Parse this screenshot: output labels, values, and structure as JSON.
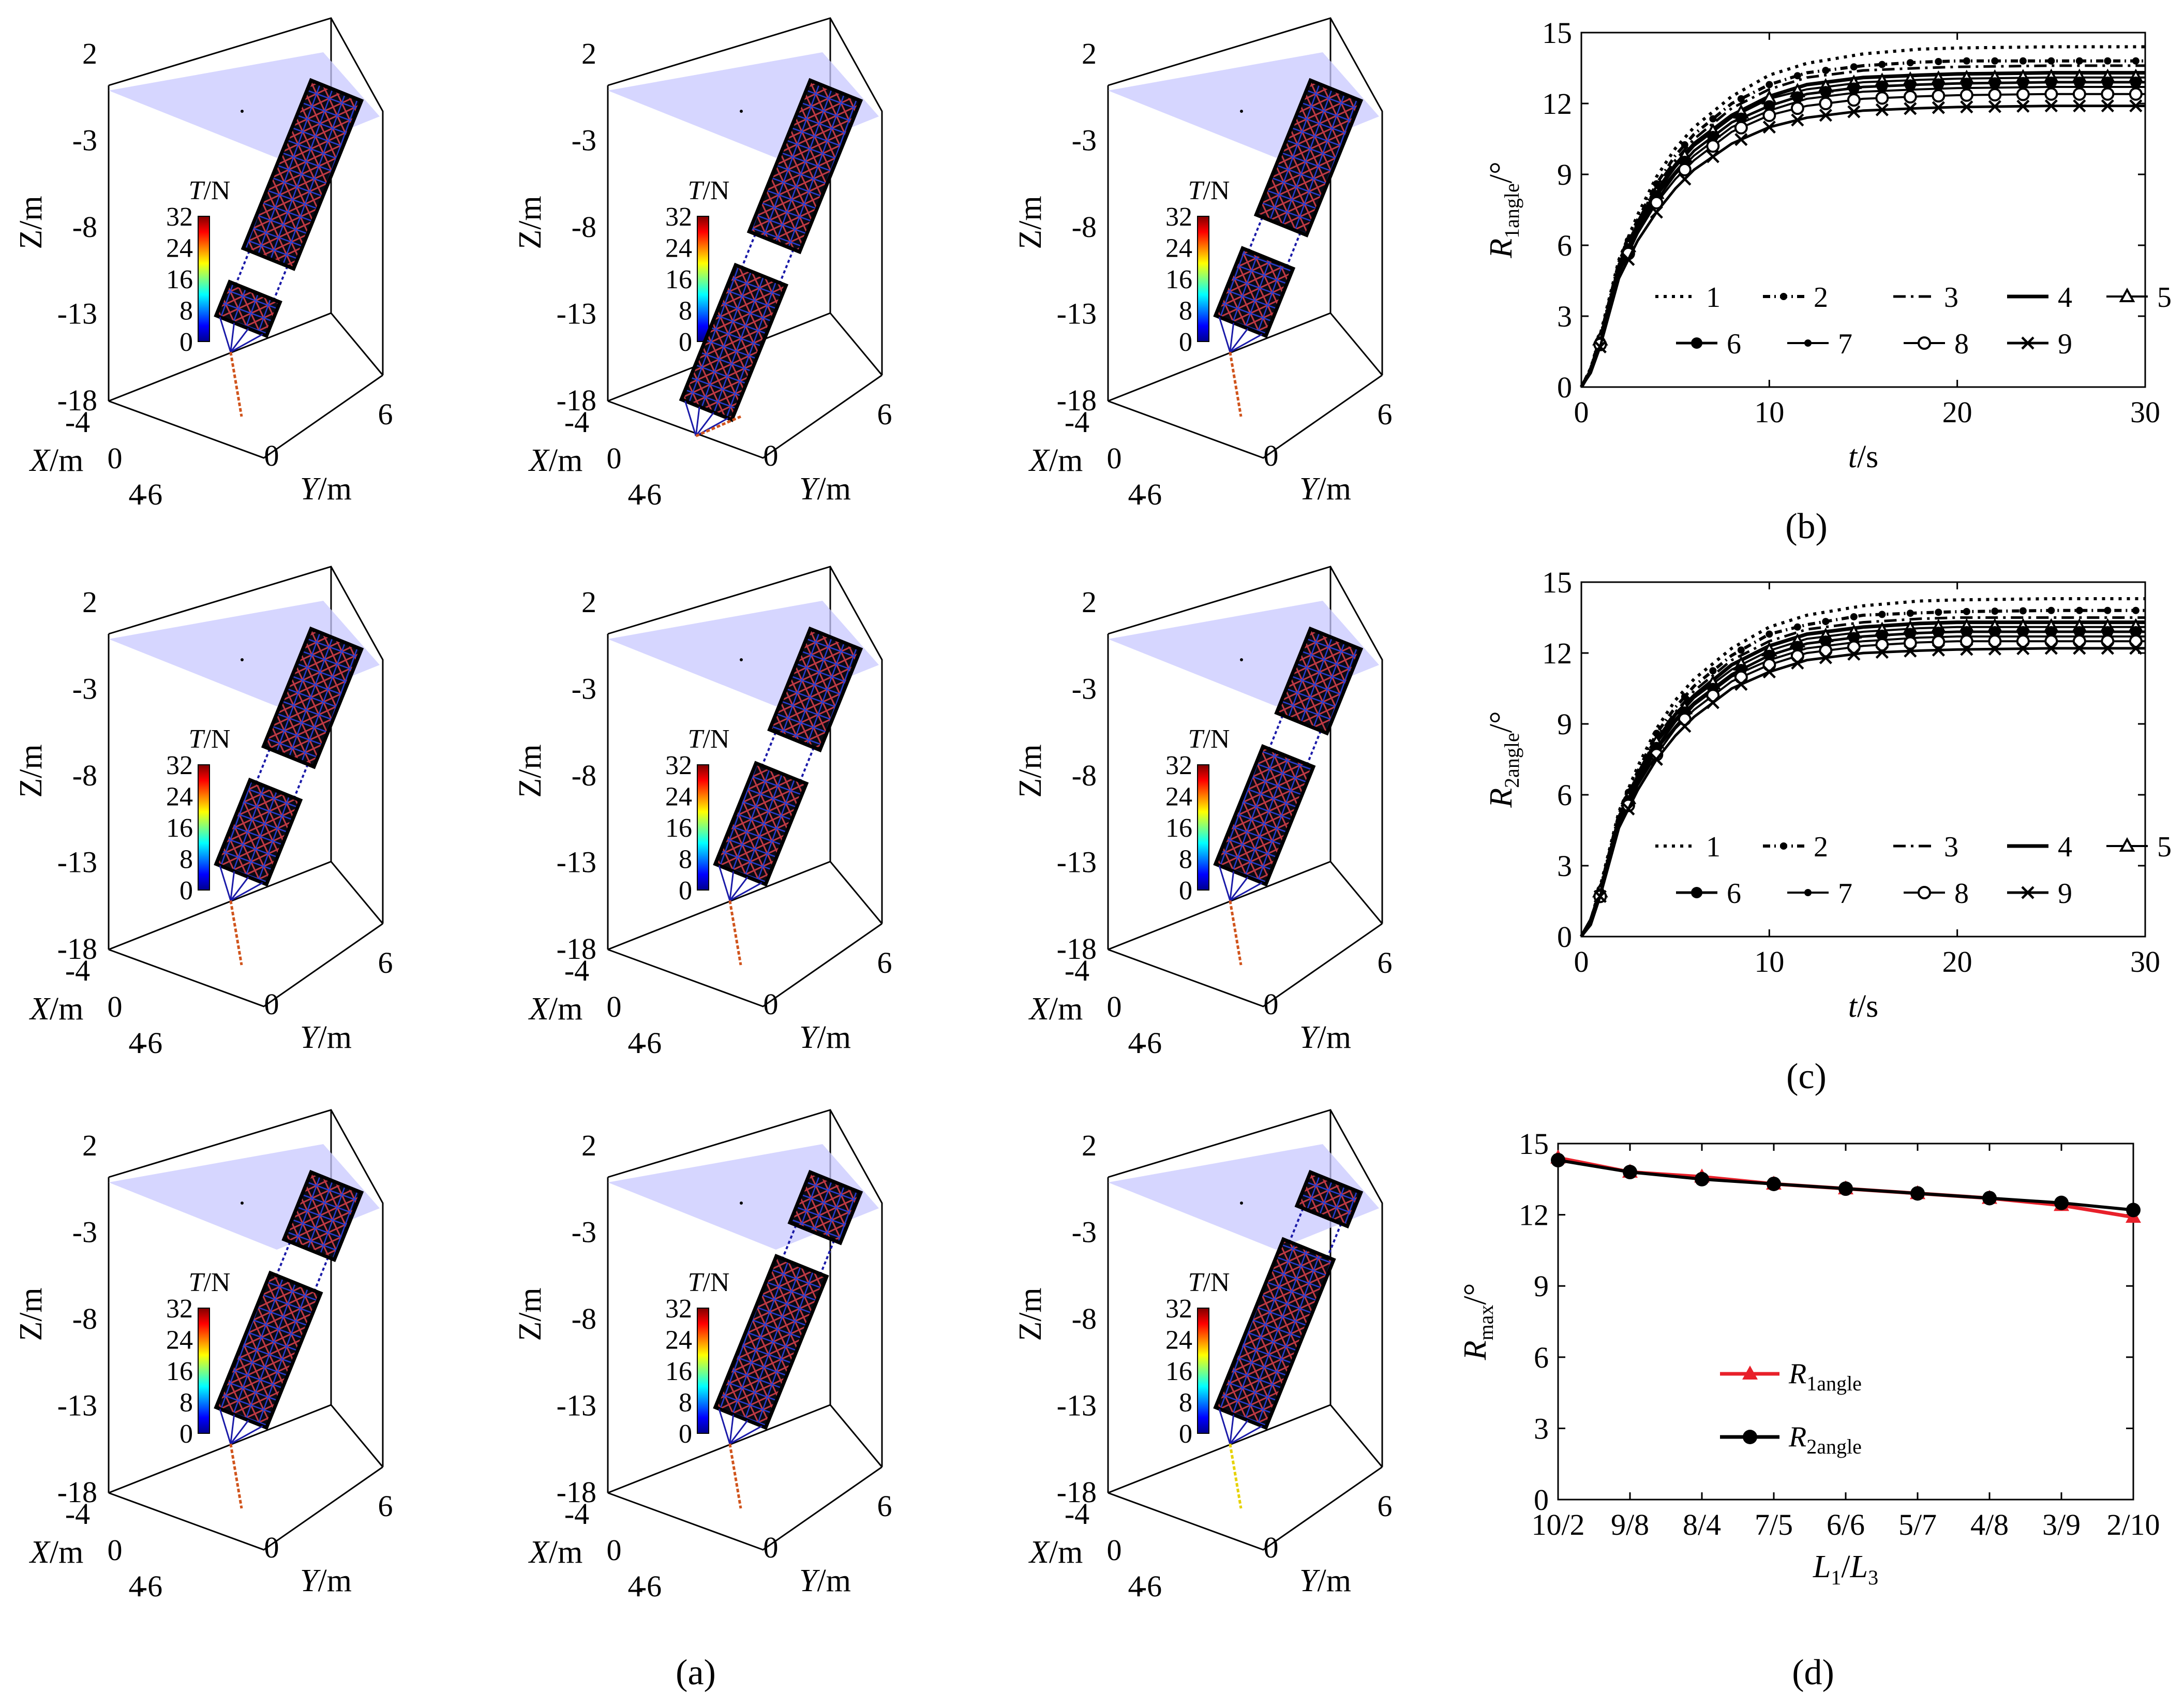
{
  "captions": {
    "a": "(a)",
    "b": "(b)",
    "c": "(c)",
    "d": "(d)"
  },
  "panel_a": {
    "z_ticks": [
      "2",
      "-3",
      "-8",
      "-13",
      "-18"
    ],
    "x_ticks": [
      "-4",
      "0",
      "4"
    ],
    "y_ticks": [
      "-6",
      "0",
      "6"
    ],
    "z_label": "Z/m",
    "x_label_italic": "X",
    "y_label_italic": "Y",
    "axis_unit": "/m",
    "colorbar_title_italic": "T",
    "colorbar_title_unit": "/N",
    "colorbar_ticks": [
      "32",
      "24",
      "16",
      "8",
      "0"
    ],
    "colorbar_range": [
      0,
      32
    ],
    "z_range": [
      -18,
      2
    ],
    "colors": {
      "water_plane": "#c8c8ff",
      "mesh_blue": "#1a1aa8",
      "mesh_red": "#c82828",
      "dark": "#000000"
    },
    "subplots": [
      {
        "id": "1",
        "L1": 10,
        "L3": 2
      },
      {
        "id": "2",
        "L1": 9,
        "L3": 8
      },
      {
        "id": "3",
        "L1": 8,
        "L3": 4
      },
      {
        "id": "4",
        "L1": 7,
        "L3": 5
      },
      {
        "id": "5",
        "L1": 6,
        "L3": 6
      },
      {
        "id": "6",
        "L1": 5,
        "L3": 7
      },
      {
        "id": "7",
        "L1": 4,
        "L3": 8
      },
      {
        "id": "8",
        "L1": 3,
        "L3": 9
      },
      {
        "id": "9",
        "L1": 2,
        "L3": 10
      }
    ]
  },
  "chart_data": [
    {
      "id": "b",
      "type": "line",
      "title": "",
      "xlabel": "t/s",
      "ylabel": "R1angle/°",
      "xlim": [
        0,
        30
      ],
      "ylim": [
        0,
        15
      ],
      "xticks": [
        0,
        10,
        20,
        30
      ],
      "yticks": [
        0,
        3,
        6,
        9,
        12,
        15
      ],
      "legend_placement": "lower-right",
      "t": [
        0,
        0.5,
        1,
        2,
        3,
        4,
        5,
        6,
        8,
        10,
        12,
        15,
        18,
        20,
        25,
        30
      ],
      "series": [
        {
          "name": "1",
          "values": [
            0,
            0.8,
            2.2,
            5.4,
            7.3,
            8.9,
            10.1,
            11.0,
            12.3,
            13.2,
            13.7,
            14.1,
            14.3,
            14.35,
            14.4,
            14.4
          ]
        },
        {
          "name": "2",
          "values": [
            0,
            0.8,
            2.1,
            5.3,
            7.1,
            8.6,
            9.8,
            10.7,
            12.0,
            12.8,
            13.3,
            13.6,
            13.75,
            13.8,
            13.8,
            13.8
          ]
        },
        {
          "name": "3",
          "values": [
            0,
            0.8,
            2.1,
            5.2,
            7.0,
            8.5,
            9.6,
            10.5,
            11.8,
            12.6,
            13.1,
            13.4,
            13.5,
            13.55,
            13.6,
            13.6
          ]
        },
        {
          "name": "4",
          "values": [
            0,
            0.7,
            2.0,
            5.1,
            6.9,
            8.3,
            9.4,
            10.3,
            11.5,
            12.3,
            12.8,
            13.1,
            13.2,
            13.25,
            13.3,
            13.3
          ]
        },
        {
          "name": "5",
          "values": [
            0,
            0.7,
            2.0,
            5.1,
            6.8,
            8.2,
            9.3,
            10.2,
            11.4,
            12.2,
            12.6,
            12.9,
            13.0,
            13.05,
            13.1,
            13.1
          ]
        },
        {
          "name": "6",
          "values": [
            0,
            0.7,
            1.9,
            5.0,
            6.7,
            8.1,
            9.1,
            10.0,
            11.2,
            11.9,
            12.4,
            12.7,
            12.8,
            12.85,
            12.9,
            12.9
          ]
        },
        {
          "name": "7",
          "values": [
            0,
            0.7,
            1.9,
            4.9,
            6.6,
            7.9,
            9.0,
            9.8,
            11.0,
            11.7,
            12.2,
            12.5,
            12.6,
            12.65,
            12.7,
            12.7
          ]
        },
        {
          "name": "8",
          "values": [
            0,
            0.6,
            1.8,
            4.8,
            6.5,
            7.8,
            8.8,
            9.6,
            10.8,
            11.5,
            11.9,
            12.2,
            12.3,
            12.35,
            12.4,
            12.4
          ]
        },
        {
          "name": "9",
          "values": [
            0,
            0.6,
            1.7,
            4.6,
            6.2,
            7.4,
            8.4,
            9.2,
            10.3,
            11.0,
            11.4,
            11.7,
            11.8,
            11.85,
            11.9,
            11.9
          ]
        }
      ]
    },
    {
      "id": "c",
      "type": "line",
      "title": "",
      "xlabel": "t/s",
      "ylabel": "R2angle/°",
      "xlim": [
        0,
        30
      ],
      "ylim": [
        0,
        15
      ],
      "xticks": [
        0,
        10,
        20,
        30
      ],
      "yticks": [
        0,
        3,
        6,
        9,
        12,
        15
      ],
      "legend_placement": "lower-right",
      "t": [
        0,
        0.5,
        1,
        2,
        3,
        4,
        5,
        6,
        8,
        10,
        12,
        15,
        18,
        20,
        25,
        30
      ],
      "series": [
        {
          "name": "1",
          "values": [
            0,
            0.7,
            2.1,
            5.3,
            7.2,
            8.8,
            10.0,
            10.9,
            12.2,
            13.1,
            13.6,
            14.0,
            14.2,
            14.25,
            14.3,
            14.3
          ]
        },
        {
          "name": "2",
          "values": [
            0,
            0.7,
            2.0,
            5.2,
            7.0,
            8.6,
            9.7,
            10.6,
            11.9,
            12.8,
            13.2,
            13.6,
            13.7,
            13.75,
            13.8,
            13.8
          ]
        },
        {
          "name": "3",
          "values": [
            0,
            0.7,
            2.0,
            5.1,
            6.9,
            8.4,
            9.5,
            10.4,
            11.7,
            12.5,
            13.0,
            13.3,
            13.45,
            13.5,
            13.5,
            13.5
          ]
        },
        {
          "name": "4",
          "values": [
            0,
            0.7,
            1.9,
            5.0,
            6.8,
            8.3,
            9.4,
            10.2,
            11.5,
            12.3,
            12.8,
            13.1,
            13.25,
            13.3,
            13.3,
            13.3
          ]
        },
        {
          "name": "5",
          "values": [
            0,
            0.6,
            1.9,
            5.0,
            6.7,
            8.2,
            9.2,
            10.1,
            11.3,
            12.1,
            12.6,
            12.9,
            13.05,
            13.1,
            13.1,
            13.1
          ]
        },
        {
          "name": "6",
          "values": [
            0,
            0.6,
            1.8,
            4.9,
            6.6,
            8.0,
            9.1,
            9.9,
            11.1,
            11.9,
            12.4,
            12.7,
            12.85,
            12.9,
            12.9,
            12.9
          ]
        },
        {
          "name": "7",
          "values": [
            0,
            0.6,
            1.8,
            4.8,
            6.5,
            7.9,
            8.9,
            9.8,
            11.0,
            11.7,
            12.2,
            12.5,
            12.65,
            12.7,
            12.7,
            12.7
          ]
        },
        {
          "name": "8",
          "values": [
            0,
            0.6,
            1.7,
            4.7,
            6.4,
            7.7,
            8.8,
            9.6,
            10.8,
            11.5,
            12.0,
            12.3,
            12.45,
            12.5,
            12.5,
            12.5
          ]
        },
        {
          "name": "9",
          "values": [
            0,
            0.5,
            1.7,
            4.6,
            6.2,
            7.5,
            8.5,
            9.3,
            10.5,
            11.2,
            11.7,
            12.0,
            12.1,
            12.15,
            12.2,
            12.2
          ]
        }
      ]
    },
    {
      "id": "d",
      "type": "line",
      "title": "",
      "xlabel": "L1/L3",
      "ylabel": "Rmax/°",
      "ylim": [
        0,
        15
      ],
      "yticks": [
        0,
        3,
        6,
        9,
        12,
        15
      ],
      "categories": [
        "10/2",
        "9/8",
        "8/4",
        "7/5",
        "6/6",
        "5/7",
        "4/8",
        "3/9",
        "2/10"
      ],
      "legend_placement": "lower-left",
      "series": [
        {
          "name": "R1angle",
          "color": "#e8202a",
          "marker": "triangle",
          "values": [
            14.4,
            13.8,
            13.6,
            13.3,
            13.1,
            12.9,
            12.7,
            12.4,
            11.9
          ]
        },
        {
          "name": "R2angle",
          "color": "#000000",
          "marker": "circle",
          "values": [
            14.3,
            13.8,
            13.5,
            13.3,
            13.1,
            12.9,
            12.7,
            12.5,
            12.2
          ]
        }
      ]
    }
  ]
}
